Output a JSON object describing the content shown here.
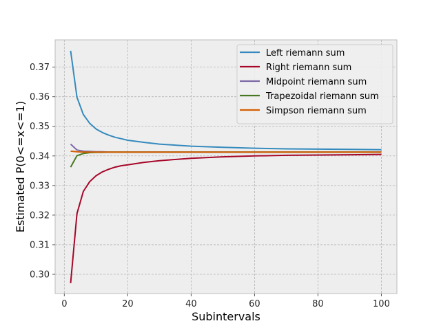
{
  "chart_data": {
    "type": "line",
    "title": "",
    "xlabel": "Subintervals",
    "ylabel": "Estimated P(0<=x<=1)",
    "xlim": [
      -2.9,
      104.9
    ],
    "ylim": [
      0.2935,
      0.3792
    ],
    "xticks": [
      0,
      20,
      40,
      60,
      80,
      100
    ],
    "yticks": [
      0.3,
      0.31,
      0.32,
      0.33,
      0.34,
      0.35,
      0.36,
      0.37
    ],
    "ytick_labels": [
      "0.30",
      "0.31",
      "0.32",
      "0.33",
      "0.34",
      "0.35",
      "0.36",
      "0.37"
    ],
    "grid": true,
    "legend": "top-right",
    "background": "#eeeeee",
    "x": [
      2,
      4,
      6,
      8,
      10,
      12,
      14,
      16,
      18,
      20,
      25,
      30,
      40,
      50,
      60,
      70,
      80,
      90,
      100
    ],
    "series": [
      {
        "name": "Left riemann sum",
        "color": "#348abd",
        "values": [
          0.3755,
          0.3598,
          0.354,
          0.351,
          0.3491,
          0.3479,
          0.347,
          0.3463,
          0.3458,
          0.3453,
          0.3446,
          0.344,
          0.3433,
          0.3429,
          0.3426,
          0.3424,
          0.3423,
          0.3422,
          0.3421
        ]
      },
      {
        "name": "Right riemann sum",
        "color": "#a60628",
        "values": [
          0.297,
          0.3205,
          0.328,
          0.3313,
          0.3333,
          0.3346,
          0.3355,
          0.3362,
          0.3367,
          0.337,
          0.3378,
          0.3384,
          0.3392,
          0.3397,
          0.34,
          0.3402,
          0.3403,
          0.3404,
          0.3405
        ]
      },
      {
        "name": "Midpoint riemann sum",
        "color": "#7a68a6",
        "values": [
          0.344,
          0.342,
          0.3416,
          0.3415,
          0.3414,
          0.3414,
          0.3413,
          0.3413,
          0.3413,
          0.3413,
          0.3413,
          0.3413,
          0.3413,
          0.3413,
          0.3413,
          0.3413,
          0.3413,
          0.3413,
          0.3413
        ]
      },
      {
        "name": "Trapezoidal riemann sum",
        "color": "#467821",
        "values": [
          0.3362,
          0.3401,
          0.3408,
          0.3411,
          0.3412,
          0.3412,
          0.3413,
          0.3413,
          0.3413,
          0.3413,
          0.3413,
          0.3413,
          0.3413,
          0.3413,
          0.3413,
          0.3413,
          0.3413,
          0.3413,
          0.3413
        ]
      },
      {
        "name": "Simpson riemann sum",
        "color": "#d55e00",
        "values": [
          0.3416,
          0.3414,
          0.3413,
          0.3413,
          0.3413,
          0.3413,
          0.3413,
          0.3413,
          0.3413,
          0.3413,
          0.3413,
          0.3413,
          0.3413,
          0.3413,
          0.3413,
          0.3413,
          0.3413,
          0.3413,
          0.3413
        ]
      }
    ]
  }
}
